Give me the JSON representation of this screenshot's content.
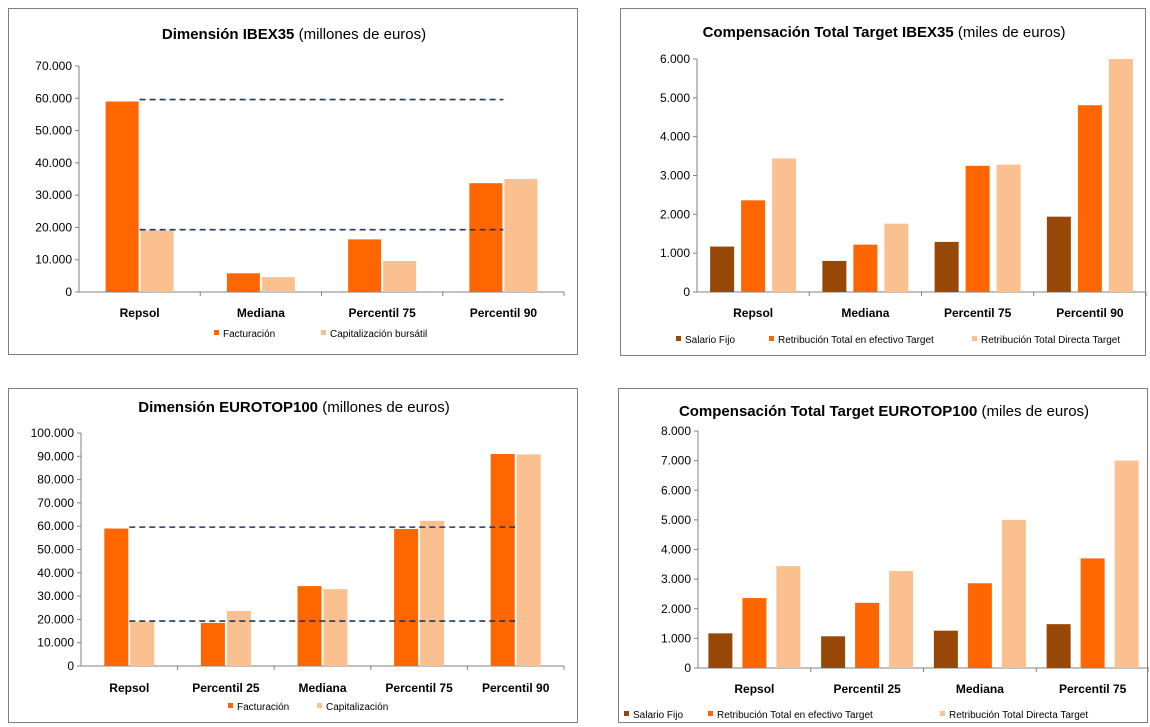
{
  "colors": {
    "salario": "#984806",
    "facturacion": "#ff6600",
    "capitalizacion": "#fac090",
    "refline": "#1f3864",
    "axis": "#808080"
  },
  "chart_data": [
    {
      "id": "p1",
      "type": "bar",
      "title_bold": "Dimensión IBEX35",
      "title_rest": " (millones de euros)",
      "categories": [
        "Repsol",
        "Mediana",
        "Percentil 75",
        "Percentil 90"
      ],
      "series": [
        {
          "name": "Facturación",
          "color": "#ff6600",
          "values": [
            59000,
            5800,
            16300,
            33700
          ]
        },
        {
          "name": "Capitalización bursátil",
          "color": "#fac090",
          "values": [
            19100,
            4600,
            9600,
            35000
          ]
        }
      ],
      "ylim": [
        0,
        70000
      ],
      "yticks": [
        "0",
        "10.000",
        "20.000",
        "30.000",
        "40.000",
        "50.000",
        "60.000",
        "70.000"
      ],
      "ref_lines": [
        59600,
        19300
      ],
      "legend_position": "bottom"
    },
    {
      "id": "p2",
      "type": "bar",
      "title_bold": "Compensación Total Target IBEX35",
      "title_rest": " (miles de euros)",
      "categories": [
        "Repsol",
        "Mediana",
        "Percentil 75",
        "Percentil 90"
      ],
      "series": [
        {
          "name": "Salario Fijo",
          "color": "#984806",
          "values": [
            1170,
            800,
            1290,
            1940
          ]
        },
        {
          "name": "Retribución Total en efectivo Target",
          "color": "#ff6600",
          "values": [
            2360,
            1220,
            3250,
            4810
          ]
        },
        {
          "name": "Retribución Total Directa Target",
          "color": "#fac090",
          "values": [
            3440,
            1760,
            3280,
            6000
          ]
        }
      ],
      "ylim": [
        0,
        6000
      ],
      "yticks": [
        "0",
        "1.000",
        "2.000",
        "3.000",
        "4.000",
        "5.000",
        "6.000"
      ],
      "ref_lines": [],
      "legend_position": "bottom"
    },
    {
      "id": "p3",
      "type": "bar",
      "title_bold": "Dimensión EUROTOP100",
      "title_rest": " (millones de euros)",
      "categories": [
        "Repsol",
        "Percentil 25",
        "Mediana",
        "Percentil 75",
        "Percentil 90"
      ],
      "series": [
        {
          "name": "Facturación",
          "color": "#ff6600",
          "values": [
            59000,
            18500,
            34300,
            58800,
            91000
          ]
        },
        {
          "name": "Capitalización",
          "color": "#fac090",
          "values": [
            19100,
            23600,
            33000,
            62300,
            90800
          ]
        }
      ],
      "ylim": [
        0,
        100000
      ],
      "yticks": [
        "0",
        "10.000",
        "20.000",
        "30.000",
        "40.000",
        "50.000",
        "60.000",
        "70.000",
        "80.000",
        "90.000",
        "100.000"
      ],
      "ref_lines": [
        59600,
        19300
      ],
      "legend_position": "bottom"
    },
    {
      "id": "p4",
      "type": "bar",
      "title_bold": "Compensación Total Target EUROTOP100",
      "title_rest": " (miles de euros)",
      "categories": [
        "Repsol",
        "Percentil 25",
        "Mediana",
        "Percentil 75"
      ],
      "series": [
        {
          "name": "Salario Fijo",
          "color": "#984806",
          "values": [
            1170,
            1070,
            1260,
            1480
          ]
        },
        {
          "name": "Retribución Total en efectivo Target",
          "color": "#ff6600",
          "values": [
            2360,
            2200,
            2860,
            3700
          ]
        },
        {
          "name": "Retribución Total Directa Target",
          "color": "#fac090",
          "values": [
            3440,
            3270,
            5000,
            7000
          ]
        }
      ],
      "ylim": [
        0,
        8000
      ],
      "yticks": [
        "0",
        "1.000",
        "2.000",
        "3.000",
        "4.000",
        "5.000",
        "6.000",
        "7.000",
        "8.000"
      ],
      "ref_lines": [],
      "legend_position": "bottom"
    }
  ]
}
